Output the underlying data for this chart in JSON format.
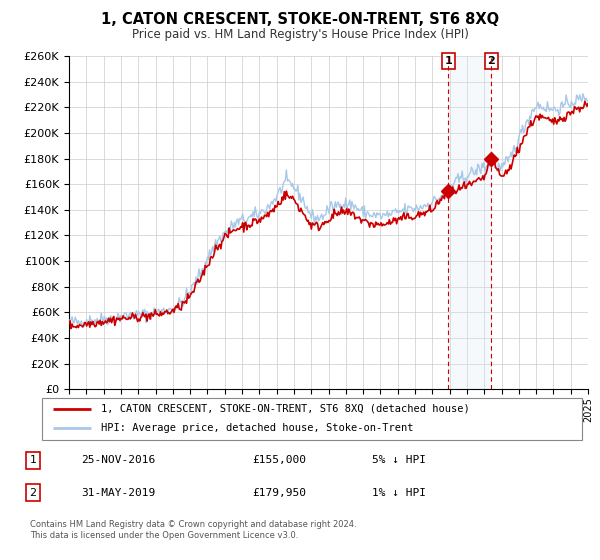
{
  "title": "1, CATON CRESCENT, STOKE-ON-TRENT, ST6 8XQ",
  "subtitle": "Price paid vs. HM Land Registry's House Price Index (HPI)",
  "xlim": [
    1995,
    2025
  ],
  "ylim": [
    0,
    260000
  ],
  "yticks": [
    0,
    20000,
    40000,
    60000,
    80000,
    100000,
    120000,
    140000,
    160000,
    180000,
    200000,
    220000,
    240000,
    260000
  ],
  "ytick_labels": [
    "£0",
    "£20K",
    "£40K",
    "£60K",
    "£80K",
    "£100K",
    "£120K",
    "£140K",
    "£160K",
    "£180K",
    "£200K",
    "£220K",
    "£240K",
    "£260K"
  ],
  "hpi_color": "#a8c8e8",
  "price_color": "#cc0000",
  "marker_color": "#cc0000",
  "sale1_date_x": 2016.92,
  "sale1_y": 155000,
  "sale2_date_x": 2019.42,
  "sale2_y": 179950,
  "vline1_x": 2016.92,
  "vline2_x": 2019.42,
  "shade_color": "#daeaf7",
  "legend_line1": "1, CATON CRESCENT, STOKE-ON-TRENT, ST6 8XQ (detached house)",
  "legend_line2": "HPI: Average price, detached house, Stoke-on-Trent",
  "table_row1": [
    "1",
    "25-NOV-2016",
    "£155,000",
    "5% ↓ HPI"
  ],
  "table_row2": [
    "2",
    "31-MAY-2019",
    "£179,950",
    "1% ↓ HPI"
  ],
  "footnote1": "Contains HM Land Registry data © Crown copyright and database right 2024.",
  "footnote2": "This data is licensed under the Open Government Licence v3.0."
}
